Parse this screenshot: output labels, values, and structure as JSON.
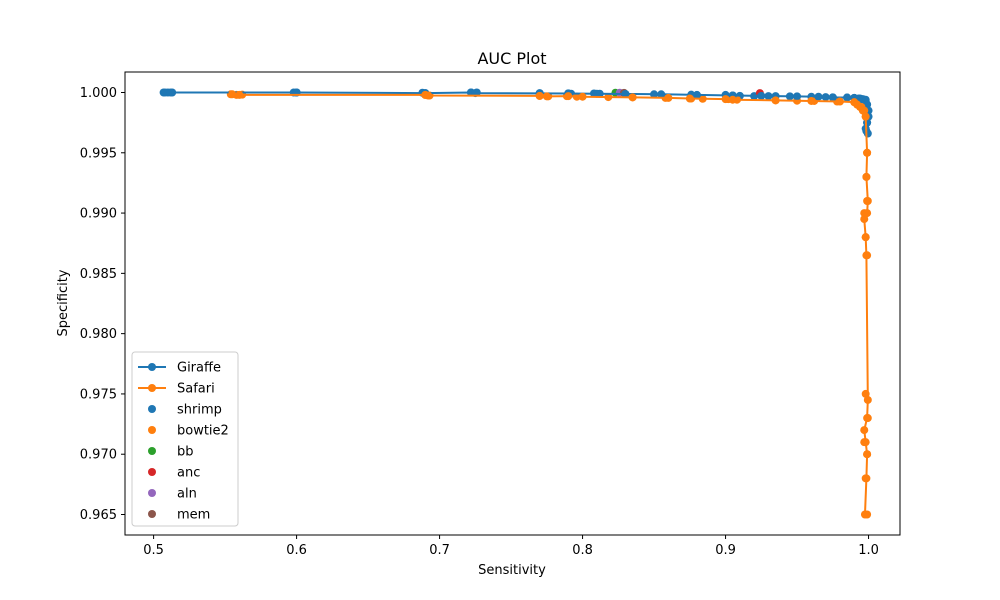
{
  "chart_data": {
    "type": "line",
    "title": "AUC Plot",
    "xlabel": "Sensitivity",
    "ylabel": "Specificity",
    "xlim": [
      0.48,
      1.022
    ],
    "ylim": [
      0.9633,
      1.0017
    ],
    "xticks": [
      0.5,
      0.6,
      0.7,
      0.8,
      0.9,
      1.0
    ],
    "xtick_labels": [
      "0.5",
      "0.6",
      "0.7",
      "0.8",
      "0.9",
      "1.0"
    ],
    "yticks": [
      0.965,
      0.97,
      0.975,
      0.98,
      0.985,
      0.99,
      0.995,
      1.0
    ],
    "ytick_labels": [
      "0.965",
      "0.970",
      "0.975",
      "0.980",
      "0.985",
      "0.990",
      "0.995",
      "1.000"
    ],
    "grid": false,
    "legend_position": "lower-left",
    "series": [
      {
        "name": "Giraffe",
        "kind": "line-marker",
        "color": "#1f77b4",
        "x": [
          0.508,
          0.512,
          0.598,
          0.6,
          0.69,
          0.722,
          0.725,
          0.77,
          0.79,
          0.81,
          0.83,
          0.855,
          0.88,
          0.905,
          0.925,
          0.935,
          0.95,
          0.965,
          0.975,
          0.985,
          0.99,
          0.993,
          0.995,
          0.997,
          0.998,
          0.999,
          0.9995,
          1.0,
          0.999,
          0.998,
          0.9995
        ],
        "y": [
          1.0,
          1.0,
          1.0,
          1.0,
          0.99995,
          1.0,
          0.99995,
          0.99993,
          0.99992,
          0.9999,
          0.99988,
          0.99985,
          0.9998,
          0.99975,
          0.99972,
          0.9997,
          0.99968,
          0.99965,
          0.9996,
          0.99958,
          0.99955,
          0.9995,
          0.99945,
          0.9994,
          0.9993,
          0.999,
          0.9985,
          0.998,
          0.9975,
          0.997,
          0.9966
        ]
      },
      {
        "name": "Safari",
        "kind": "line-marker",
        "color": "#ff7f0e",
        "x": [
          0.555,
          0.56,
          0.69,
          0.692,
          0.77,
          0.775,
          0.79,
          0.8,
          0.835,
          0.86,
          0.875,
          0.9,
          0.905,
          0.935,
          0.96,
          0.98,
          0.99,
          0.992,
          0.995,
          0.997,
          0.998,
          0.999,
          0.9985,
          0.9995,
          0.999,
          0.997,
          0.998,
          0.9985,
          0.9995,
          0.999,
          0.997,
          0.998,
          0.999,
          0.9985,
          0.9975
        ],
        "y": [
          0.99985,
          0.9998,
          0.9998,
          0.99975,
          0.99972,
          0.99968,
          0.9997,
          0.99965,
          0.9996,
          0.99955,
          0.9995,
          0.99945,
          0.9994,
          0.99935,
          0.9993,
          0.99925,
          0.9992,
          0.999,
          0.9988,
          0.9985,
          0.998,
          0.995,
          0.993,
          0.991,
          0.99,
          0.9895,
          0.988,
          0.9865,
          0.9745,
          0.973,
          0.972,
          0.971,
          0.97,
          0.968,
          0.965
        ]
      },
      {
        "name": "shrimp",
        "kind": "scatter",
        "color": "#1f77b4",
        "x": [
          0.507,
          0.51,
          0.513,
          0.6,
          0.688,
          0.69,
          0.722,
          0.726,
          0.77,
          0.79,
          0.792,
          0.808,
          0.812,
          0.85,
          0.876,
          0.9,
          0.905,
          0.91,
          0.92,
          0.93,
          0.945,
          0.96,
          0.97,
          0.975,
          0.985,
          0.99,
          0.994,
          0.996,
          0.998,
          0.999,
          1.0,
          0.999,
          0.9985
        ],
        "y": [
          1.0,
          1.0,
          1.0,
          1.0,
          0.99998,
          0.99995,
          1.0,
          1.0,
          0.99995,
          0.99993,
          0.9999,
          0.99992,
          0.9999,
          0.99985,
          0.99982,
          0.9998,
          0.99975,
          0.99972,
          0.9997,
          0.9997,
          0.99968,
          0.99965,
          0.99962,
          0.9996,
          0.99958,
          0.99955,
          0.9995,
          0.99945,
          0.9994,
          0.999,
          0.9985,
          0.9975,
          0.9968
        ]
      },
      {
        "name": "bowtie2",
        "kind": "scatter",
        "color": "#ff7f0e",
        "x": [
          0.554,
          0.558,
          0.562,
          0.69,
          0.693,
          0.77,
          0.776,
          0.789,
          0.796,
          0.818,
          0.835,
          0.858,
          0.876,
          0.884,
          0.902,
          0.908,
          0.935,
          0.95,
          0.962,
          0.978,
          0.99,
          0.992,
          0.994,
          0.996,
          0.998,
          0.999,
          0.9985,
          0.999,
          0.997,
          0.998,
          0.999,
          0.998,
          0.9995,
          0.997,
          0.999,
          0.998,
          0.999
        ],
        "y": [
          0.99985,
          0.9998,
          0.99982,
          0.9998,
          0.99975,
          0.99972,
          0.99968,
          0.9997,
          0.99965,
          0.99962,
          0.9996,
          0.99955,
          0.9995,
          0.99948,
          0.99945,
          0.9994,
          0.99935,
          0.99932,
          0.9993,
          0.99925,
          0.9992,
          0.999,
          0.9988,
          0.9985,
          0.998,
          0.995,
          0.993,
          0.991,
          0.99,
          0.988,
          0.9865,
          0.975,
          0.973,
          0.971,
          0.97,
          0.968,
          0.965
        ]
      },
      {
        "name": "bb",
        "kind": "scatter",
        "color": "#2ca02c",
        "x": [
          0.823
        ],
        "y": [
          0.99998
        ]
      },
      {
        "name": "anc",
        "kind": "scatter",
        "color": "#d62728",
        "x": [
          0.924
        ],
        "y": [
          0.99995
        ]
      },
      {
        "name": "aln",
        "kind": "scatter",
        "color": "#9467bd",
        "x": [
          0.826
        ],
        "y": [
          0.99998
        ]
      },
      {
        "name": "mem",
        "kind": "scatter",
        "color": "#8c564b",
        "x": [
          0.829
        ],
        "y": [
          0.99997
        ]
      }
    ]
  }
}
